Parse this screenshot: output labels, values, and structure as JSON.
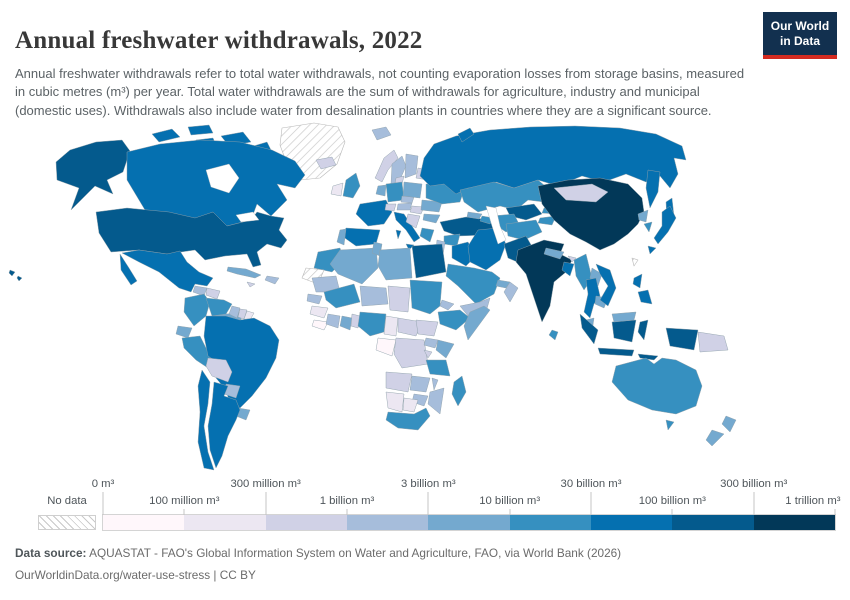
{
  "header": {
    "title": "Annual freshwater withdrawals, 2022",
    "subtitle": "Annual freshwater withdrawals refer to total water withdrawals, not counting evaporation losses from storage basins, measured in cubic metres (m³) per year. Total water withdrawals are the sum of withdrawals for agriculture, industry and municipal (domestic uses). Withdrawals also include water from desalination plants in countries where they are a significant source.",
    "logo": {
      "line1": "Our World",
      "line2": "in Data",
      "bg_color": "#12304f",
      "accent_color": "#d42b21"
    }
  },
  "legend": {
    "no_data_label": "No data"
  },
  "footer": {
    "source_label": "Data source:",
    "source_text": "AQUASTAT - FAO's Global Information System on Water and Agriculture, FAO, via World Bank (2026)",
    "link_line": "OurWorldinData.org/water-use-stress | CC BY"
  },
  "chart_data": {
    "type": "choropleth",
    "title": "Annual freshwater withdrawals, 2022",
    "year": 2022,
    "unit": "m³ per year",
    "scale": "log-stepped bins",
    "legend_position": "bottom",
    "bin_edges": [
      "0 m³",
      "100 million m³",
      "300 million m³",
      "1 billion m³",
      "3 billion m³",
      "10 billion m³",
      "30 billion m³",
      "100 billion m³",
      "300 billion m³",
      "1 trillion m³"
    ],
    "palette": [
      "#fff7fb",
      "#ece7f2",
      "#d0d1e6",
      "#a6bddb",
      "#74a9cf",
      "#3690c0",
      "#0570b0",
      "#045a8d",
      "#023858"
    ],
    "no_data_style": "white with gray diagonal hatching",
    "countries_bin_index": {
      "united-states": 7,
      "canada": 6,
      "mexico": 6,
      "greenland": "nd",
      "guatemala": 3,
      "honduras": 2,
      "nicaragua": 3,
      "costa-rica-panama": 4,
      "cuba": 4,
      "hispaniola": 3,
      "jamaica": 2,
      "colombia": 5,
      "venezuela": 5,
      "guyana": 3,
      "suriname": 2,
      "french-guiana": 1,
      "ecuador": 4,
      "peru": 5,
      "brazil": 6,
      "bolivia": 2,
      "paraguay": 3,
      "uruguay": 4,
      "argentina": 6,
      "chile": 6,
      "iceland": 2,
      "norway": 2,
      "sweden": 3,
      "finland": 3,
      "denmark": 2,
      "baltics": 2,
      "united-kingdom": 5,
      "ireland": 1,
      "france": 6,
      "spain": 6,
      "portugal": 4,
      "germany": 5,
      "benelux": 4,
      "switzerland": 2,
      "italy": 6,
      "austria": 3,
      "czechia": 3,
      "poland": 4,
      "hungary": 2,
      "balkans": 2,
      "greece": 5,
      "romania": 4,
      "bulgaria": 4,
      "belarus": 3,
      "ukraine": 5,
      "svalbard": 3,
      "russia": 6,
      "kazakhstan": 5,
      "uzbekistan": 7,
      "turkmenistan": 5,
      "kyrgyzstan": 5,
      "tajikistan": 5,
      "turkey": 7,
      "georgia": 4,
      "azerbaijan": 5,
      "syria": 5,
      "lebanon-israel-jordan": 3,
      "iraq": 6,
      "iran": 6,
      "kuwait": 2,
      "saudi-arabia": 5,
      "uae": 4,
      "oman": 3,
      "yemen": 3,
      "morocco": 5,
      "western-sahara": "nd",
      "algeria": 4,
      "tunisia": 4,
      "libya": 4,
      "egypt": 7,
      "mauritania": 3,
      "mali": 5,
      "niger": 3,
      "chad": 2,
      "sudan": 5,
      "eritrea": 3,
      "ethiopia": 5,
      "somalia": 4,
      "senegal": 3,
      "guinea": 1,
      "sierra-leone-liberia": 0,
      "ivory-coast": 3,
      "ghana": 4,
      "togo-benin": 2,
      "nigeria": 5,
      "cameroon": 1,
      "central-african-republic": 2,
      "south-sudan": 2,
      "gabon-congo": 0,
      "dr-congo": 2,
      "uganda": 3,
      "kenya": 4,
      "rwanda-burundi": 2,
      "tanzania": 5,
      "angola": 2,
      "zambia": 3,
      "malawi": 3,
      "mozambique": 3,
      "zimbabwe": 3,
      "namibia": 1,
      "botswana": 1,
      "south-africa": 5,
      "madagascar": 5,
      "afghanistan": 5,
      "pakistan": 7,
      "india": 8,
      "nepal": 4,
      "bhutan": 2,
      "bangladesh": 6,
      "sri-lanka": 5,
      "china": 8,
      "mongolia": 2,
      "north-korea": 4,
      "south-korea": 5,
      "japan": 6,
      "taiwan": "nd",
      "myanmar": 5,
      "laos": 4,
      "thailand": 6,
      "cambodia": 4,
      "vietnam": 6,
      "malaysia": 4,
      "philippines": 6,
      "indonesia": 7,
      "papua-new-guinea": 2,
      "australia": 5,
      "new-zealand": 4
    }
  }
}
